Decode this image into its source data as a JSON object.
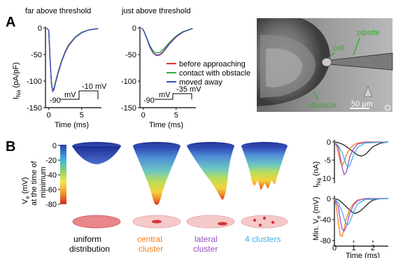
{
  "figure": {
    "panel_a_label": "A",
    "panel_b_label": "B",
    "plot1_title": "far above threshold",
    "plot2_title": "just above threshold",
    "ylabel_ina": "I",
    "ylabel_ina_sub": "Na",
    "ylabel_ina_unit": " (pA/pF)",
    "xlabel_time": "Time (ms)",
    "protocol1_hold": "-90",
    "protocol1_unit": "mV",
    "protocol1_step": "-10 mV",
    "protocol2_hold": "-90",
    "protocol2_unit": "mV",
    "protocol2_step": "-35 mV",
    "legend": [
      {
        "label": "before approaching",
        "color": "#e8332a"
      },
      {
        "label": "contact with obstacle",
        "color": "#3aaa35"
      },
      {
        "label": "moved away",
        "color": "#3b4fc4"
      }
    ],
    "micro_labels": {
      "cell": "cell",
      "pipette": "pipette",
      "obstacle": "obstacle",
      "scale": "50 µm"
    },
    "colorbar_label_1": "V",
    "colorbar_label_1_sub": "e",
    "colorbar_label_1_rest": " (mV)",
    "colorbar_label_2": "at the time of",
    "colorbar_label_3": "minimum",
    "colorbar_ticks": [
      "0",
      "-20",
      "-40",
      "-60",
      "-80"
    ],
    "distributions": [
      {
        "line1": "uniform",
        "line2": "distribution",
        "color": "#000000"
      },
      {
        "line1": "central",
        "line2": "cluster",
        "color": "#f07f1e"
      },
      {
        "line1": "lateral",
        "line2": "cluster",
        "color": "#9b4fbf"
      },
      {
        "line1": "4 clusters",
        "line2": "",
        "color": "#45b0e5"
      }
    ],
    "b_top_ylabel": "I",
    "b_top_ylabel_sub": "Na",
    "b_top_ylabel_unit": " (nA)",
    "b_bottom_ylabel": "Min. V",
    "b_bottom_ylabel_sub": "e",
    "b_bottom_ylabel_unit": " (mV)",
    "b_xlabel": "Time (ms)"
  },
  "chart_data": [
    {
      "type": "line",
      "title": "far above threshold",
      "xlabel": "Time (ms)",
      "ylabel": "INa (pA/pF)",
      "xlim": [
        -0.5,
        8
      ],
      "ylim": [
        -150,
        0
      ],
      "xticks": [
        0,
        5
      ],
      "yticks": [
        0,
        -50,
        -100,
        -150
      ],
      "series": [
        {
          "name": "before approaching",
          "x": [
            -0.3,
            0,
            0.2,
            0.4,
            0.6,
            0.8,
            1,
            1.5,
            2,
            2.5,
            3,
            4,
            5,
            6,
            7,
            7.5
          ],
          "y": [
            0,
            -5,
            -60,
            -105,
            -120,
            -116,
            -105,
            -82,
            -62,
            -46,
            -34,
            -18,
            -9,
            -4,
            -2,
            -1
          ]
        },
        {
          "name": "contact with obstacle",
          "x": [
            -0.3,
            0,
            0.2,
            0.4,
            0.6,
            0.8,
            1,
            1.5,
            2,
            2.5,
            3,
            4,
            5,
            6,
            7,
            7.5
          ],
          "y": [
            0,
            -5,
            -58,
            -102,
            -117,
            -113,
            -102,
            -79,
            -60,
            -44,
            -32,
            -17,
            -8,
            -4,
            -2,
            -1
          ]
        },
        {
          "name": "moved away",
          "x": [
            -0.3,
            0,
            0.2,
            0.4,
            0.6,
            0.8,
            1,
            1.5,
            2,
            2.5,
            3,
            4,
            5,
            6,
            7,
            7.5
          ],
          "y": [
            0,
            -5,
            -59,
            -104,
            -119,
            -115,
            -104,
            -81,
            -61,
            -45,
            -33,
            -18,
            -9,
            -4,
            -2,
            -1
          ]
        }
      ]
    },
    {
      "type": "line",
      "title": "just above threshold",
      "xlabel": "Time (ms)",
      "ylabel": "INa (pA/pF)",
      "xlim": [
        -0.5,
        8
      ],
      "ylim": [
        -150,
        0
      ],
      "xticks": [
        0,
        5
      ],
      "yticks": [
        0,
        -50,
        -100,
        -150
      ],
      "series": [
        {
          "name": "before approaching",
          "x": [
            -0.3,
            0,
            0.5,
            1,
            1.5,
            2,
            2.5,
            3,
            3.5,
            4,
            5,
            6,
            7,
            7.5
          ],
          "y": [
            0,
            -3,
            -18,
            -36,
            -47,
            -52,
            -51,
            -46,
            -38,
            -30,
            -17,
            -8,
            -3,
            -1
          ]
        },
        {
          "name": "contact with obstacle",
          "x": [
            -0.3,
            0,
            0.5,
            1,
            1.5,
            2,
            2.5,
            3,
            3.5,
            4,
            5,
            6,
            7,
            7.5
          ],
          "y": [
            0,
            -3,
            -17,
            -33,
            -43,
            -47,
            -46,
            -41,
            -34,
            -27,
            -15,
            -7,
            -3,
            -1
          ]
        },
        {
          "name": "moved away",
          "x": [
            -0.3,
            0,
            0.5,
            1,
            1.5,
            2,
            2.5,
            3,
            3.5,
            4,
            5,
            6,
            7,
            7.5
          ],
          "y": [
            0,
            -3,
            -18,
            -35,
            -46,
            -51,
            -50,
            -45,
            -37,
            -29,
            -16,
            -8,
            -3,
            -1
          ]
        }
      ]
    },
    {
      "type": "line",
      "xlabel": "",
      "ylabel": "INa (nA)",
      "xlim": [
        0,
        2.8
      ],
      "ylim": [
        -10,
        0
      ],
      "yticks": [
        0,
        -5,
        -10
      ],
      "series": [
        {
          "name": "uniform distribution",
          "x": [
            0,
            0.2,
            0.4,
            0.6,
            0.8,
            1,
            1.2,
            1.4,
            1.6,
            1.8,
            2,
            2.4,
            2.8
          ],
          "y": [
            0,
            -0.2,
            -0.6,
            -1.2,
            -2,
            -2.8,
            -3.6,
            -3.9,
            -3.5,
            -2.4,
            -1.3,
            -0.3,
            0
          ]
        },
        {
          "name": "central cluster",
          "x": [
            0,
            0.1,
            0.2,
            0.3,
            0.4,
            0.5,
            0.6,
            0.8,
            1,
            1.2,
            1.6,
            2.8
          ],
          "y": [
            0,
            -1,
            -3,
            -5.5,
            -6.5,
            -5.5,
            -3.8,
            -1.8,
            -0.8,
            -0.3,
            0,
            0
          ]
        },
        {
          "name": "lateral cluster",
          "x": [
            0,
            0.2,
            0.3,
            0.4,
            0.5,
            0.6,
            0.7,
            0.8,
            1,
            1.2,
            1.6,
            2.8
          ],
          "y": [
            0,
            -1.5,
            -4,
            -7,
            -9,
            -8.5,
            -6.5,
            -4,
            -1.8,
            -0.6,
            -0.1,
            0
          ]
        },
        {
          "name": "4 clusters",
          "x": [
            0,
            0.2,
            0.4,
            0.5,
            0.6,
            0.7,
            0.8,
            0.9,
            1,
            1.2,
            1.6,
            2.8
          ],
          "y": [
            0,
            -1,
            -3,
            -4.5,
            -6,
            -7,
            -6.5,
            -5,
            -3.5,
            -1.5,
            -0.3,
            0
          ]
        }
      ]
    },
    {
      "type": "line",
      "xlabel": "Time (ms)",
      "ylabel": "Min. Ve (mV)",
      "xlim": [
        0,
        2.8
      ],
      "ylim": [
        -80,
        0
      ],
      "xticks": [
        0,
        1,
        2
      ],
      "yticks": [
        0,
        -40,
        -80
      ],
      "series": [
        {
          "name": "uniform distribution",
          "x": [
            0,
            0.2,
            0.4,
            0.6,
            0.8,
            1,
            1.2,
            1.4,
            1.6,
            1.8,
            2,
            2.4,
            2.8
          ],
          "y": [
            0,
            -2,
            -8,
            -15,
            -22,
            -28,
            -27,
            -22,
            -15,
            -8,
            -3,
            0,
            0
          ]
        },
        {
          "name": "central cluster",
          "x": [
            0,
            0.1,
            0.2,
            0.3,
            0.4,
            0.5,
            0.6,
            0.8,
            1,
            1.2,
            1.6,
            2.8
          ],
          "y": [
            0,
            -15,
            -45,
            -70,
            -72,
            -58,
            -40,
            -20,
            -9,
            -3,
            0,
            0
          ]
        },
        {
          "name": "lateral cluster",
          "x": [
            0,
            0.2,
            0.3,
            0.4,
            0.5,
            0.6,
            0.7,
            0.8,
            1,
            1.2,
            1.6,
            2.8
          ],
          "y": [
            0,
            -15,
            -40,
            -58,
            -62,
            -55,
            -42,
            -28,
            -12,
            -4,
            0,
            0
          ]
        },
        {
          "name": "4 clusters",
          "x": [
            0,
            0.2,
            0.4,
            0.5,
            0.6,
            0.7,
            0.8,
            0.9,
            1,
            1.2,
            1.6,
            2.8
          ],
          "y": [
            0,
            -8,
            -25,
            -38,
            -48,
            -50,
            -45,
            -35,
            -25,
            -10,
            -2,
            0
          ]
        }
      ]
    }
  ]
}
